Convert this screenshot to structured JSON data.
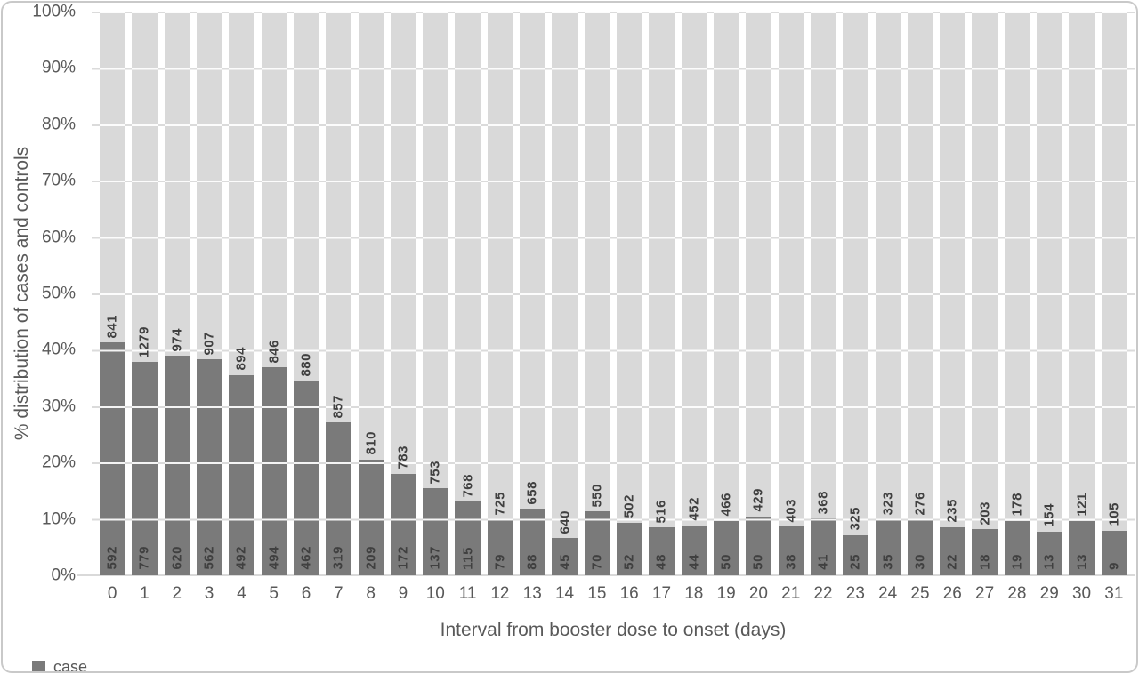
{
  "y_axis": {
    "title": "% distribution of cases and controls",
    "tick_labels": [
      "0%",
      "10%",
      "20%",
      "30%",
      "40%",
      "50%",
      "60%",
      "70%",
      "80%",
      "90%",
      "100%"
    ]
  },
  "x_axis": {
    "title": "Interval from booster dose to onset (days)"
  },
  "legend": {
    "items": [
      {
        "label": "case",
        "color": "#7a7a7a"
      }
    ]
  },
  "colors": {
    "case_bar": "#7a7a7a",
    "control_bar": "#d9d9d9",
    "data_label_text": "#404040",
    "axis_text": "#595959",
    "gridline": "#dbdbdb"
  },
  "chart_data": {
    "type": "bar",
    "subtype": "stacked-100-percent",
    "title": "",
    "xlabel": "Interval from booster dose to onset (days)",
    "ylabel": "% distribution of cases and controls",
    "ylim": [
      0,
      100
    ],
    "y_tick_labels": [
      "0%",
      "10%",
      "20%",
      "30%",
      "40%",
      "50%",
      "60%",
      "70%",
      "80%",
      "90%",
      "100%"
    ],
    "grid": true,
    "legend_position": "bottom-left",
    "categories": [
      "0",
      "1",
      "2",
      "3",
      "4",
      "5",
      "6",
      "7",
      "8",
      "9",
      "10",
      "11",
      "12",
      "13",
      "14",
      "15",
      "16",
      "17",
      "18",
      "19",
      "20",
      "21",
      "22",
      "23",
      "24",
      "25",
      "26",
      "27",
      "28",
      "29",
      "30",
      "31"
    ],
    "series": [
      {
        "name": "case",
        "color": "#7a7a7a",
        "values": [
          592,
          779,
          620,
          562,
          492,
          494,
          462,
          319,
          209,
          172,
          137,
          115,
          79,
          88,
          45,
          70,
          52,
          48,
          44,
          50,
          50,
          38,
          41,
          25,
          35,
          30,
          22,
          18,
          19,
          13,
          13,
          9
        ]
      },
      {
        "name": "control",
        "color": "#d9d9d9",
        "values": [
          841,
          1279,
          974,
          907,
          894,
          846,
          880,
          857,
          810,
          783,
          753,
          768,
          725,
          658,
          640,
          550,
          502,
          516,
          452,
          466,
          429,
          403,
          368,
          325,
          323,
          276,
          235,
          203,
          178,
          154,
          121,
          105
        ]
      }
    ],
    "data_labels_note": "counts shown rotated 90deg: case count at base of dark segment, control count at base of light segment"
  }
}
